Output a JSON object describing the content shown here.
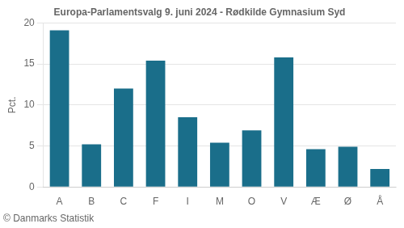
{
  "chart_data": {
    "type": "bar",
    "title": "Europa-Parlamentsvalg 9. juni 2024 - Rødkilde Gymnasium Syd",
    "ylabel": "Pct.",
    "footnote": "© Danmarks Statistik",
    "categories": [
      "A",
      "B",
      "C",
      "F",
      "I",
      "M",
      "O",
      "V",
      "Æ",
      "Ø",
      "Å"
    ],
    "values": [
      19.1,
      5.2,
      12.0,
      15.4,
      8.5,
      5.4,
      6.9,
      15.8,
      4.6,
      4.9,
      2.2
    ],
    "color": "#1a6e8a",
    "ylim": [
      0,
      20
    ],
    "yticks": [
      0,
      5,
      10,
      15,
      20
    ],
    "grid": true
  }
}
